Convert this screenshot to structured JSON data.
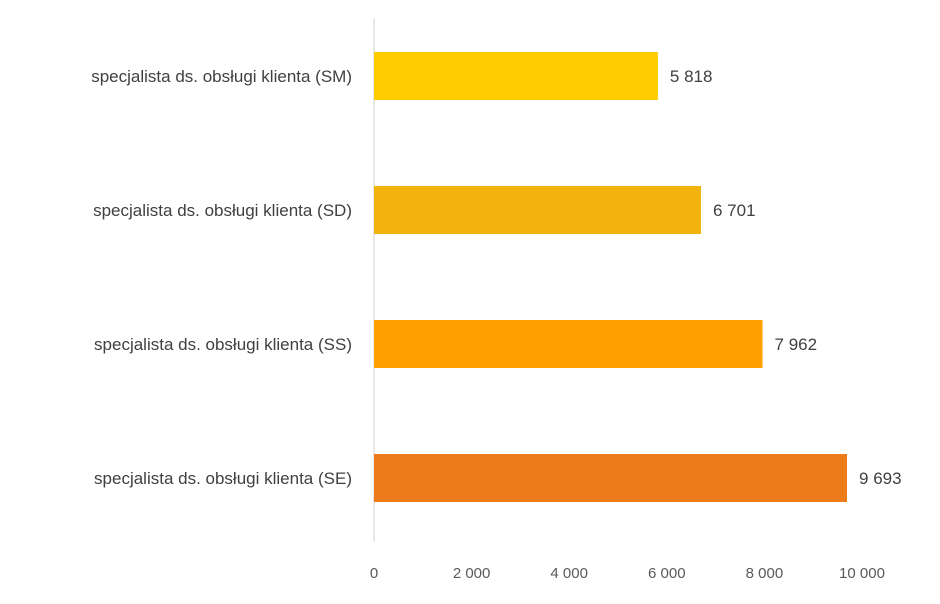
{
  "chart_data": {
    "type": "bar",
    "orientation": "horizontal",
    "categories": [
      "specjalista ds. obsługi klienta (SM)",
      "specjalista ds. obsługi klienta (SD)",
      "specjalista ds. obsługi klienta (SS)",
      "specjalista ds. obsługi klienta (SE)"
    ],
    "values": [
      5818,
      6701,
      7962,
      9693
    ],
    "value_labels": [
      "5 818",
      "6 701",
      "7 962",
      "9 693"
    ],
    "colors": [
      "#FFCC00",
      "#F2B30F",
      "#FF9F00",
      "#ED7B1A"
    ],
    "xlim": [
      0,
      10000
    ],
    "xticks": [
      0,
      2000,
      4000,
      6000,
      8000,
      10000
    ],
    "xtick_labels": [
      "0",
      "2 000",
      "4 000",
      "6 000",
      "8 000",
      "10 000"
    ],
    "title": "",
    "xlabel": "",
    "ylabel": "",
    "grid": false,
    "legend": "none"
  }
}
